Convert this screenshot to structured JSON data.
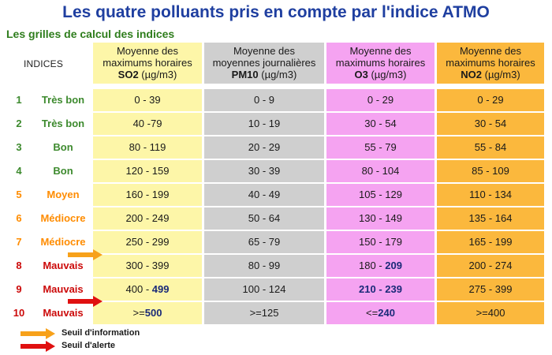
{
  "title": "Les quatre polluants pris en compte par l'indice ATMO",
  "subtitle": "Les grilles de calcul des indices",
  "indices_header": "INDICES",
  "columns": [
    {
      "line1": "Moyenne des",
      "line2": "maximums horaires",
      "pollutant": "SO2",
      "unit": " (µg/m3)",
      "bg": "#fdf6a8"
    },
    {
      "line1": "Moyenne des",
      "line2": "moyennes journalières",
      "pollutant": "PM10",
      "unit": " (µg/m3)",
      "bg": "#cfcfcf"
    },
    {
      "line1": "Moyenne des",
      "line2": "maximums horaires",
      "pollutant": "O3",
      "unit": " (µg/m3)",
      "bg": "#f5a3f1"
    },
    {
      "line1": "Moyenne des",
      "line2": "maximums horaires",
      "pollutant": "NO2",
      "unit": " (µg/m3)",
      "bg": "#fbb83d"
    }
  ],
  "rows": [
    {
      "num": "1",
      "label": "Très bon",
      "color": "#3d8a2e",
      "values": [
        [
          "0 - 39"
        ],
        [
          "0 - 9"
        ],
        [
          "0 - 29"
        ],
        [
          "0 - 29"
        ]
      ]
    },
    {
      "num": "2",
      "label": "Très bon",
      "color": "#3d8a2e",
      "values": [
        [
          "40 -79"
        ],
        [
          "10 - 19"
        ],
        [
          "30 - 54"
        ],
        [
          "30 - 54"
        ]
      ]
    },
    {
      "num": "3",
      "label": "Bon",
      "color": "#3d8a2e",
      "values": [
        [
          "80 - 119"
        ],
        [
          "20 - 29"
        ],
        [
          "55 - 79"
        ],
        [
          "55 - 84"
        ]
      ]
    },
    {
      "num": "4",
      "label": "Bon",
      "color": "#3d8a2e",
      "values": [
        [
          "120 - 159"
        ],
        [
          "30 - 39"
        ],
        [
          "80 - 104"
        ],
        [
          "85 - 109"
        ]
      ]
    },
    {
      "num": "5",
      "label": "Moyen",
      "color": "#ff8c00",
      "values": [
        [
          "160 - 199"
        ],
        [
          "40 - 49"
        ],
        [
          "105 - 129"
        ],
        [
          "110 - 134"
        ]
      ]
    },
    {
      "num": "6",
      "label": "Médiocre",
      "color": "#ff8c00",
      "values": [
        [
          "200 - 249"
        ],
        [
          "50 - 64"
        ],
        [
          "130 - 149"
        ],
        [
          "135 - 164"
        ]
      ]
    },
    {
      "num": "7",
      "label": "Médiocre",
      "color": "#ff8c00",
      "values": [
        [
          "250 - 299"
        ],
        [
          "65 - 79"
        ],
        [
          "150 - 179"
        ],
        [
          "165 - 199"
        ]
      ]
    },
    {
      "num": "8",
      "label": "Mauvais",
      "color": "#cc0a0a",
      "values": [
        [
          "300 - 399"
        ],
        [
          "80 - 99"
        ],
        [
          "180 - ",
          "209"
        ],
        [
          "200 - 274"
        ]
      ]
    },
    {
      "num": "9",
      "label": "Mauvais",
      "color": "#cc0a0a",
      "values": [
        [
          "400 - ",
          "499"
        ],
        [
          "100 - 124"
        ],
        [
          "",
          "210 - 239"
        ],
        [
          "275 - 399"
        ]
      ]
    },
    {
      "num": "10",
      "label": "Mauvais",
      "color": "#cc0a0a",
      "values": [
        [
          ">=",
          "500"
        ],
        [
          ">=125"
        ],
        [
          "<=",
          "240"
        ],
        [
          ">=400"
        ]
      ]
    }
  ],
  "legend": [
    {
      "label": "Seuil d'information",
      "color": "#f7a11a"
    },
    {
      "label": "Seuil d'alerte",
      "color": "#e01010"
    }
  ]
}
